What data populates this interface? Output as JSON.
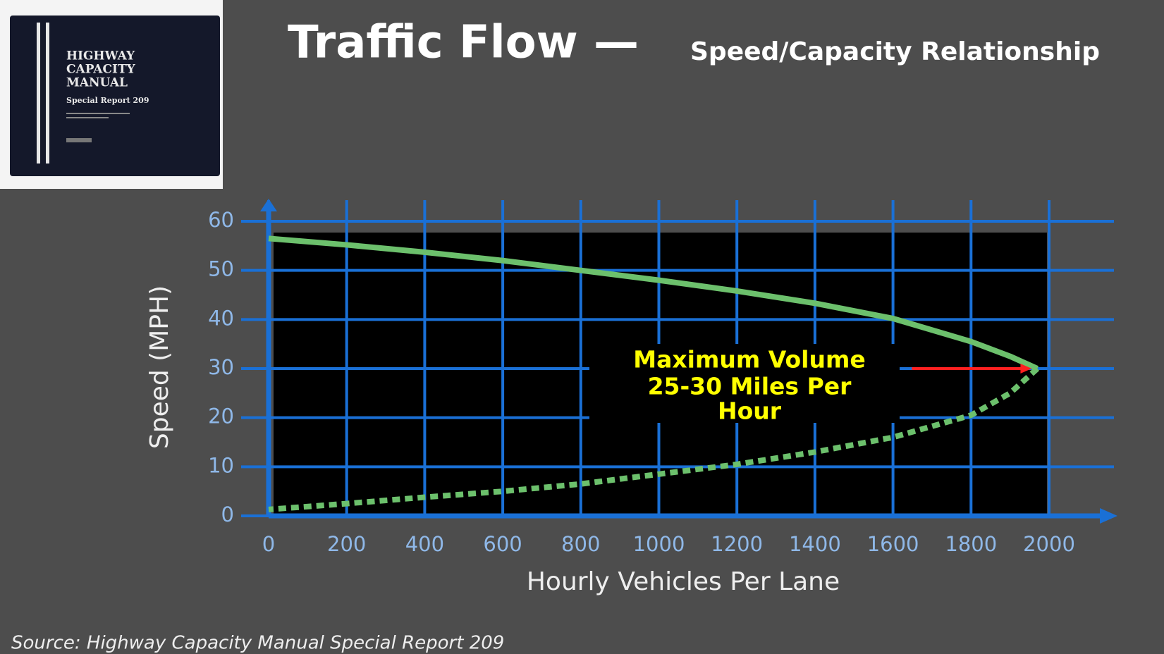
{
  "chart_data": {
    "type": "line",
    "title": "Traffic Flow —",
    "subtitle": "Speed/Capacity Relationship",
    "xlabel": "Hourly Vehicles Per Lane",
    "ylabel": "Speed (MPH)",
    "annotation": [
      "Maximum Volume",
      "25-30 Miles Per",
      "Hour"
    ],
    "source": "Source: Highway Capacity Manual Special Report 209",
    "xlim": [
      0,
      2000
    ],
    "xticks": [
      0,
      200,
      400,
      600,
      800,
      1000,
      1200,
      1400,
      1600,
      1800,
      2000
    ],
    "ylim": [
      0,
      60
    ],
    "yticks": [
      0,
      10,
      20,
      30,
      40,
      50,
      60
    ],
    "grid": true,
    "series": [
      {
        "color": "#6cc06c",
        "style": "solid",
        "x": [
          0,
          200,
          400,
          600,
          800,
          1000,
          1200,
          1400,
          1600,
          1800,
          1900,
          1970
        ],
        "values": [
          56.5,
          55.2,
          53.7,
          52,
          50,
          48,
          45.8,
          43.3,
          40.2,
          35.5,
          32.5,
          30
        ]
      },
      {
        "color": "#6cc06c",
        "style": "dashed",
        "x": [
          1970,
          1900,
          1800,
          1600,
          1400,
          1200,
          1000,
          800,
          600,
          400,
          200,
          0
        ],
        "values": [
          30,
          25,
          20.5,
          16,
          13,
          10.5,
          8.5,
          6.5,
          5,
          3.8,
          2.5,
          1.3
        ]
      }
    ]
  },
  "book": {
    "title": [
      "HIGHWAY",
      "CAPACITY",
      "MANUAL"
    ],
    "subtitle": "Special Report 209"
  }
}
